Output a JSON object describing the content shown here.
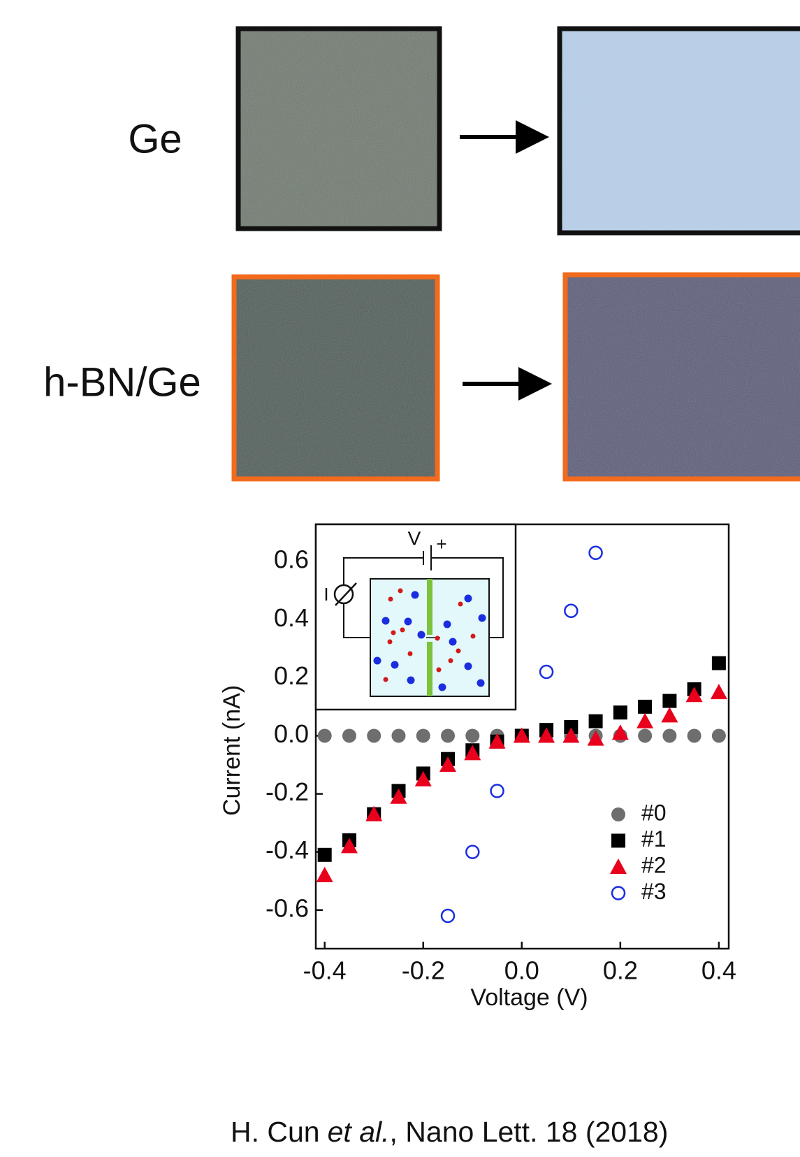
{
  "figure": {
    "row_labels": [
      "Ge",
      "h-BN/Ge"
    ],
    "citation": [
      "H. Cun",
      "et al.",
      ", Nano Lett. 18 (2018)"
    ]
  },
  "inset": {
    "labels": [
      "V",
      "+",
      "I"
    ]
  },
  "chart_data": {
    "type": "scatter",
    "xlabel": "Voltage (V)",
    "ylabel": "Current (nA)",
    "x": [
      -0.4,
      -0.35,
      -0.3,
      -0.25,
      -0.2,
      -0.15,
      -0.1,
      -0.05,
      0,
      0.05,
      0.1,
      0.15,
      0.2,
      0.25,
      0.3,
      0.35,
      0.4
    ],
    "series": [
      {
        "name": "#0",
        "color": "#6e6e6e",
        "marker": "circle",
        "values": [
          0,
          0,
          0,
          0,
          0,
          0,
          0,
          0,
          0,
          0,
          0,
          0,
          0,
          0,
          0,
          0,
          0
        ]
      },
      {
        "name": "#1",
        "color": "#000000",
        "marker": "square",
        "values": [
          -0.41,
          -0.36,
          -0.27,
          -0.19,
          -0.13,
          -0.08,
          -0.05,
          -0.02,
          0,
          0.02,
          0.03,
          0.05,
          0.08,
          0.1,
          0.12,
          0.16,
          0.25
        ]
      },
      {
        "name": "#2",
        "color": "#e8001c",
        "marker": "triangle",
        "values": [
          -0.48,
          -0.38,
          -0.27,
          -0.21,
          -0.15,
          -0.1,
          -0.06,
          -0.02,
          0,
          0,
          0,
          -0.01,
          0.01,
          0.05,
          0.07,
          0.14,
          0.15
        ]
      },
      {
        "name": "#3",
        "color": "#1a2ee0",
        "marker": "open-circle",
        "values": [
          null,
          null,
          null,
          null,
          null,
          -0.62,
          -0.4,
          -0.19,
          null,
          0.22,
          0.43,
          0.63,
          null,
          null,
          null,
          null,
          null
        ]
      }
    ],
    "xlim": [
      -0.418,
      0.42
    ],
    "ylim": [
      -0.733,
      0.728
    ],
    "xticks": [
      -0.4,
      -0.2,
      {
        "value": 0,
        "label": "0.0"
      },
      0.2,
      0.4
    ],
    "yticks": [
      0.6,
      0.4,
      0.2,
      {
        "value": 0,
        "label": "0.0"
      },
      -0.2,
      -0.4,
      -0.6
    ],
    "legend": "lower right"
  }
}
